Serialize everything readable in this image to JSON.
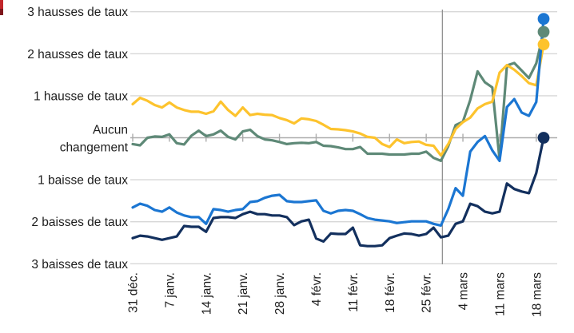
{
  "decorations": {
    "red_edge_marker_color_top": "#C2272B",
    "red_edge_marker_color_bottom": "#7E161B"
  },
  "chart_data": {
    "type": "line",
    "title": "",
    "y_axis": {
      "range": [
        -3,
        3
      ],
      "gridlines": true,
      "labels": [
        {
          "value": 3,
          "label": "3 hausses de taux"
        },
        {
          "value": 2,
          "label": "2 hausses de taux"
        },
        {
          "value": 1,
          "label": "1 hausse de taux"
        },
        {
          "value": 0,
          "label": "Aucun\nchangement"
        },
        {
          "value": -1,
          "label": "1 baisse de taux"
        },
        {
          "value": -2,
          "label": "2 baisses de taux"
        },
        {
          "value": -3,
          "label": "3 baisses de taux"
        }
      ]
    },
    "x_axis": {
      "n_points": 57,
      "tick_indices": [
        0,
        5,
        10,
        15,
        20,
        25,
        30,
        35,
        40,
        45,
        50,
        55
      ],
      "tick_labels": [
        "31 déc.",
        "7 janv.",
        "14 janv.",
        "21 janv.",
        "28 janv.",
        "4 févr.",
        "11 févr.",
        "18 févr.",
        "25 févr.",
        "4 mars",
        "11 mars",
        "18 mars"
      ]
    },
    "reference_line": {
      "at_index": 42.2
    },
    "line_width": 3.2,
    "end_dot_radius": 7.4,
    "colors": {
      "grid": "#D7D7D7",
      "zero_axis": "#ACACAC",
      "reference_line": "#8B8B8B",
      "text": "#1C1C1C"
    },
    "series": [
      {
        "name": "teal",
        "color": "#5E8977",
        "values": [
          -0.15,
          -0.18,
          0.0,
          0.03,
          0.02,
          0.08,
          -0.13,
          -0.16,
          0.05,
          0.17,
          0.04,
          0.08,
          0.17,
          0.02,
          -0.04,
          0.15,
          0.19,
          0.04,
          -0.04,
          -0.06,
          -0.1,
          -0.15,
          -0.13,
          -0.12,
          -0.13,
          -0.1,
          -0.19,
          -0.2,
          -0.23,
          -0.27,
          -0.27,
          -0.22,
          -0.38,
          -0.38,
          -0.38,
          -0.4,
          -0.4,
          -0.4,
          -0.38,
          -0.38,
          -0.33,
          -0.48,
          -0.55,
          -0.2,
          0.3,
          0.38,
          0.9,
          1.58,
          1.32,
          1.2,
          -0.52,
          1.72,
          1.78,
          1.6,
          1.42,
          1.77,
          2.52
        ]
      },
      {
        "name": "yellow",
        "color": "#FDC32D",
        "values": [
          0.8,
          0.95,
          0.88,
          0.78,
          0.72,
          0.84,
          0.72,
          0.66,
          0.62,
          0.62,
          0.57,
          0.63,
          0.86,
          0.66,
          0.52,
          0.72,
          0.54,
          0.57,
          0.55,
          0.54,
          0.47,
          0.42,
          0.34,
          0.46,
          0.44,
          0.4,
          0.31,
          0.21,
          0.2,
          0.18,
          0.15,
          0.1,
          0.02,
          0.0,
          -0.15,
          -0.22,
          -0.04,
          -0.13,
          -0.1,
          -0.09,
          -0.17,
          -0.19,
          -0.42,
          -0.15,
          0.21,
          0.37,
          0.48,
          0.7,
          0.8,
          0.86,
          1.55,
          1.73,
          1.62,
          1.47,
          1.3,
          1.25,
          2.22
        ]
      },
      {
        "name": "light-blue",
        "color": "#1B76D2",
        "values": [
          -1.66,
          -1.57,
          -1.62,
          -1.72,
          -1.76,
          -1.66,
          -1.78,
          -1.85,
          -1.89,
          -1.89,
          -2.05,
          -1.7,
          -1.72,
          -1.76,
          -1.72,
          -1.7,
          -1.53,
          -1.51,
          -1.43,
          -1.38,
          -1.36,
          -1.51,
          -1.53,
          -1.53,
          -1.51,
          -1.49,
          -1.74,
          -1.8,
          -1.74,
          -1.72,
          -1.74,
          -1.82,
          -1.91,
          -1.95,
          -1.97,
          -1.99,
          -2.03,
          -2.01,
          -1.99,
          -1.99,
          -1.99,
          -2.05,
          -2.09,
          -1.7,
          -1.2,
          -1.38,
          -0.33,
          -0.1,
          0.04,
          -0.3,
          -0.55,
          0.73,
          0.92,
          0.6,
          0.52,
          0.85,
          2.83
        ]
      },
      {
        "name": "navy",
        "color": "#13305E",
        "values": [
          -2.39,
          -2.33,
          -2.35,
          -2.39,
          -2.43,
          -2.39,
          -2.35,
          -2.1,
          -2.12,
          -2.12,
          -2.24,
          -1.91,
          -1.89,
          -1.89,
          -1.91,
          -1.82,
          -1.76,
          -1.82,
          -1.82,
          -1.85,
          -1.85,
          -1.89,
          -2.08,
          -1.99,
          -1.95,
          -2.4,
          -2.47,
          -2.28,
          -2.29,
          -2.29,
          -2.14,
          -2.56,
          -2.58,
          -2.58,
          -2.56,
          -2.39,
          -2.33,
          -2.28,
          -2.29,
          -2.33,
          -2.29,
          -2.14,
          -2.37,
          -2.33,
          -2.05,
          -1.99,
          -1.57,
          -1.63,
          -1.76,
          -1.8,
          -1.76,
          -1.09,
          -1.22,
          -1.28,
          -1.32,
          -0.84,
          0.0
        ]
      }
    ]
  }
}
